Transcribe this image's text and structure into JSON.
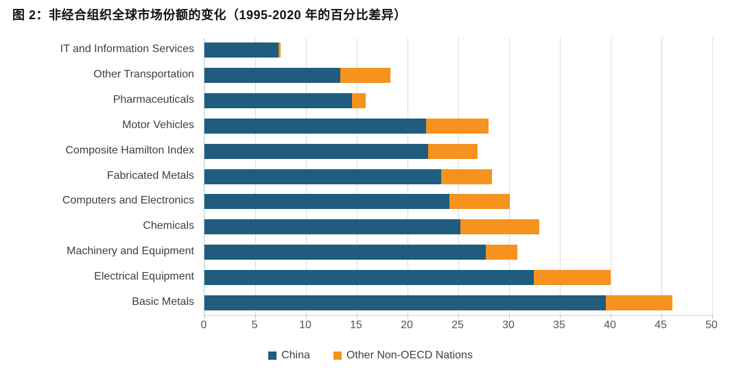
{
  "title": "图 2：非经合组织全球市场份额的变化（1995-2020 年的百分比差异）",
  "colors": {
    "china": "#1f5c7e",
    "other": "#f6921e",
    "gridline": "#dcdcdc",
    "axis_left": "#a9c6d8",
    "axis_bottom": "#d6d0d0",
    "title_text": "#111111",
    "label_text": "#3f3f3f",
    "tick_text": "#555555"
  },
  "chart_data": {
    "type": "bar",
    "orientation": "horizontal",
    "stacked": true,
    "title": "图 2：非经合组织全球市场份额的变化（1995-2020 年的百分比差异）",
    "xlabel": "",
    "ylabel": "",
    "xlim": [
      0,
      50
    ],
    "x_ticks": [
      0,
      5,
      10,
      15,
      20,
      25,
      30,
      35,
      40,
      45,
      50
    ],
    "grid": true,
    "legend_position": "bottom",
    "categories": [
      "IT and Information Services",
      "Other Transportation",
      "Pharmaceuticals",
      "Motor Vehicles",
      "Composite Hamilton Index",
      "Fabricated Metals",
      "Computers and Electronics",
      "Chemicals",
      "Machinery and Equipment",
      "Electrical Equipment",
      "Basic Metals"
    ],
    "series": [
      {
        "name": "China",
        "color": "#1f5c7e",
        "values": [
          7.3,
          13.4,
          14.5,
          21.8,
          22.0,
          23.3,
          24.1,
          25.2,
          27.7,
          32.4,
          39.5
        ]
      },
      {
        "name": "Other Non-OECD Nations",
        "color": "#f6921e",
        "values": [
          0.2,
          4.9,
          1.4,
          6.2,
          4.9,
          5.0,
          6.0,
          7.8,
          3.1,
          7.6,
          6.6
        ]
      }
    ]
  },
  "legend": {
    "items": [
      {
        "label": "China"
      },
      {
        "label": "Other Non-OECD Nations"
      }
    ]
  }
}
